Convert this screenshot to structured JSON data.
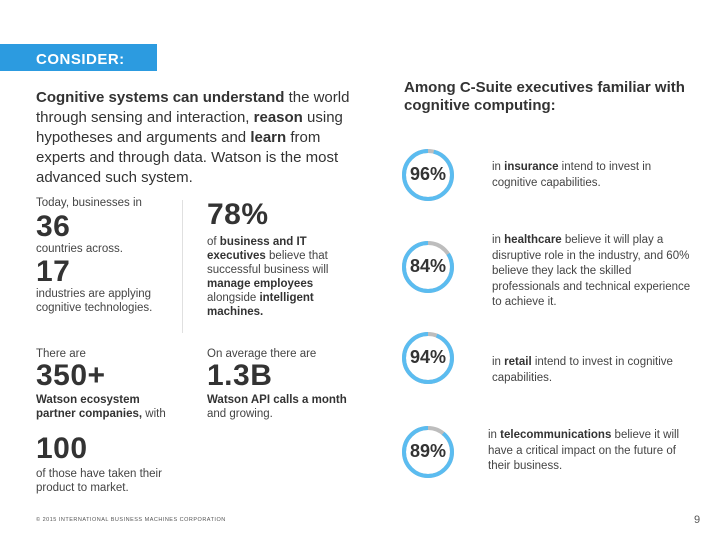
{
  "consider": {
    "label": "CONSIDER:",
    "color": "#2c9be0"
  },
  "intro": {
    "part1_bold": "Cognitive systems can understand",
    "part1_rest": " the world through sensing and interaction, ",
    "part2_bold": "reason",
    "part2_rest": " using hypotheses and arguments and ",
    "part3_bold": "learn",
    "part3_rest": " from experts and through data. Watson is the most advanced such system."
  },
  "left_stats": {
    "today_label": "Today, businesses in",
    "countries_value": "36",
    "countries_label": "countries across.",
    "industries_value": "17",
    "industries_label": "industries are applying cognitive technologies.",
    "pct_value": "78%",
    "pct_label_a": "of ",
    "pct_label_b": "business and IT executives",
    "pct_label_c": " believe that successful business will ",
    "pct_label_d": "manage employees",
    "pct_label_e": " alongside ",
    "pct_label_f": "intelligent machines.",
    "there_are": "There are",
    "partners_value": "350+",
    "partners_label_bold": "Watson ecosystem partner companies,",
    "partners_label_rest": " with",
    "taken_value": "100",
    "taken_label": "of those have taken their product to market.",
    "average_label": "On average there are",
    "api_value": "1.3B",
    "api_label_bold": "Watson API calls a month",
    "api_label_rest": " and growing."
  },
  "right": {
    "heading": "Among C-Suite executives familiar with cognitive computing:",
    "ring_color": "#5bbcf0",
    "ring_track_color": "#bdbdbd",
    "stats": [
      {
        "value": "96%",
        "fraction": 0.96,
        "pre": "in ",
        "bold": "insurance",
        "post": " intend to invest in cognitive capabilities."
      },
      {
        "value": "84%",
        "fraction": 0.84,
        "pre": "in ",
        "bold": "healthcare",
        "post": " believe it will play a disruptive role in the industry, and 60% believe they lack the skilled professionals and technical experience to achieve it."
      },
      {
        "value": "94%",
        "fraction": 0.94,
        "pre": "in ",
        "bold": "retail",
        "post": " intend to invest in cognitive capabilities."
      },
      {
        "value": "89%",
        "fraction": 0.89,
        "pre": "in ",
        "bold": "telecommunications",
        "post": " believe it will have a critical impact on the future of their business."
      }
    ]
  },
  "footer": {
    "copyright": "© 2015 INTERNATIONAL BUSINESS MACHINES CORPORATION",
    "page": "9"
  }
}
